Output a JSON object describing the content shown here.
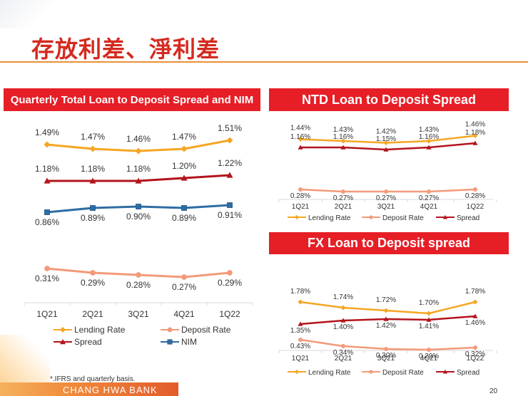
{
  "page": {
    "title": "存放利差、淨利差",
    "footnote": "*.IFRS and quarterly basis.",
    "brand": "CHANG HWA BANK",
    "page_number": "20"
  },
  "colors": {
    "lending": "#f5a623",
    "deposit": "#f39a7a",
    "spread": "#b3141c",
    "nim": "#2e6da4",
    "banner": "#e61e26"
  },
  "legend_labels": {
    "lending": "Lending Rate",
    "deposit": "Deposit Rate",
    "spread": "Spread",
    "nim": "NIM"
  },
  "chart_data": [
    {
      "type": "line",
      "title": "Quarterly Total Loan to Deposit Spread and NIM",
      "categories": [
        "1Q21",
        "2Q21",
        "3Q21",
        "4Q21",
        "1Q22"
      ],
      "series": [
        {
          "name": "Lending Rate",
          "key": "lending",
          "values": [
            1.49,
            1.47,
            1.46,
            1.47,
            1.51
          ],
          "labels": [
            "1.49%",
            "1.47%",
            "1.46%",
            "1.47%",
            "1.51%"
          ]
        },
        {
          "name": "Spread",
          "key": "spread",
          "values": [
            1.18,
            1.18,
            1.18,
            1.2,
            1.22
          ],
          "labels": [
            "1.18%",
            "1.18%",
            "1.18%",
            "1.20%",
            "1.22%"
          ]
        },
        {
          "name": "NIM",
          "key": "nim",
          "values": [
            0.86,
            0.89,
            0.9,
            0.89,
            0.91
          ],
          "labels": [
            "0.86%",
            "0.89%",
            "0.90%",
            "0.89%",
            "0.91%"
          ]
        },
        {
          "name": "Deposit Rate",
          "key": "deposit",
          "values": [
            0.31,
            0.29,
            0.28,
            0.27,
            0.29
          ],
          "labels": [
            "0.31%",
            "0.29%",
            "0.28%",
            "0.27%",
            "0.29%"
          ]
        }
      ],
      "legend": [
        "Lending Rate",
        "Deposit Rate",
        "Spread",
        "NIM"
      ]
    },
    {
      "type": "line",
      "title": "NTD Loan to Deposit Spread",
      "categories": [
        "1Q21",
        "2Q21",
        "3Q21",
        "4Q21",
        "1Q22"
      ],
      "series": [
        {
          "name": "Lending Rate",
          "key": "lending",
          "values": [
            1.44,
            1.43,
            1.42,
            1.43,
            1.46
          ],
          "labels": [
            "1.44%",
            "1.43%",
            "1.42%",
            "1.43%",
            "1.46%"
          ]
        },
        {
          "name": "Spread",
          "key": "spread",
          "values": [
            1.16,
            1.16,
            1.15,
            1.16,
            1.18
          ],
          "labels": [
            "1.16%",
            "1.16%",
            "1.15%",
            "1.16%",
            "1.18%"
          ]
        },
        {
          "name": "Deposit Rate",
          "key": "deposit",
          "values": [
            0.28,
            0.27,
            0.27,
            0.27,
            0.28
          ],
          "labels": [
            "0.28%",
            "0.27%",
            "0.27%",
            "0.27%",
            "0.28%"
          ]
        }
      ],
      "legend": [
        "Lending Rate",
        "Deposit Rate",
        "Spread"
      ]
    },
    {
      "type": "line",
      "title": "FX Loan to Deposit spread",
      "categories": [
        "1Q21",
        "2Q21",
        "3Q21",
        "4Q21",
        "1Q22"
      ],
      "series": [
        {
          "name": "Lending Rate",
          "key": "lending",
          "values": [
            1.78,
            1.74,
            1.72,
            1.7,
            1.78
          ],
          "labels": [
            "1.78%",
            "1.74%",
            "1.72%",
            "1.70%",
            "1.78%"
          ]
        },
        {
          "name": "Spread",
          "key": "spread",
          "values": [
            1.35,
            1.4,
            1.42,
            1.41,
            1.46
          ],
          "labels": [
            "1.35%",
            "1.40%",
            "1.42%",
            "1.41%",
            "1.46%"
          ]
        },
        {
          "name": "Deposit Rate",
          "key": "deposit",
          "values": [
            0.43,
            0.34,
            0.3,
            0.29,
            0.32
          ],
          "labels": [
            "0.43%",
            "0.34%",
            "0.30%",
            "0.29%",
            "0.32%"
          ]
        }
      ],
      "legend": [
        "Lending Rate",
        "Deposit Rate",
        "Spread"
      ]
    }
  ]
}
